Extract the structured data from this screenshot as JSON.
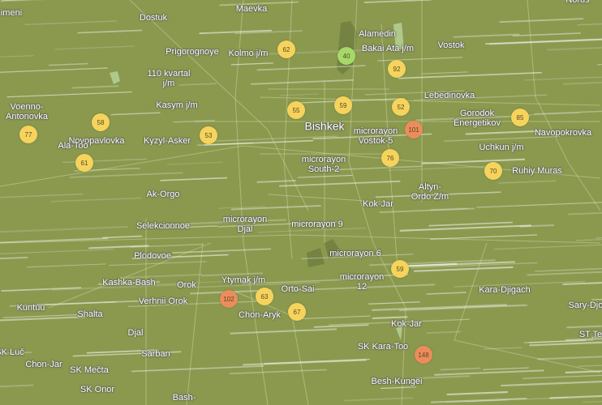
{
  "map": {
    "colors": {
      "background": "#8b994f",
      "good": "#a6d86a",
      "moderate": "#f6d35c",
      "unhealthy_sensitive": "#ec8c5c"
    },
    "city_label": "Bishkek",
    "labels": [
      "imeni",
      "Dostuk",
      "Maevka",
      "Prigorognoye",
      "Kolmo j/m",
      "110 kvartal\nj/m",
      "Kasym j/m",
      "Voenno-\nAntonovka",
      "Novopavlovka",
      "Kyzyl-Asker",
      "Ala-Too",
      "Ak-Orgo",
      "Alamedin",
      "Vostok",
      "Bakai Ata j/m",
      "Lebedinovka",
      "Gorodok\nÉnergetikov",
      "microrayon\nVostok-5",
      "Navopokrovka",
      "Uchkun j/m",
      "microrayon\nSouth-2",
      "Ruhiy Muras",
      "Altyn-\nOrdo Z/m",
      "Kok-Jar",
      "Selekcionnoe",
      "microrayon\nDjal",
      "microrayon 9",
      "Plodovoe",
      "microrayon 6",
      "microrayon\n12",
      "Kashka-Bash",
      "Orok",
      "Ytymak j/m",
      "Verhnii Orok",
      "Chon-Aryk",
      "Orto-Sai",
      "Kuntuu",
      "Shalta",
      "Kara-Djigach",
      "Sary-Djon",
      "Djal",
      "Kok-Jar",
      "ST Te",
      "SK Luč",
      "SK Kara-Too",
      "Sarban",
      "Chon-Jar",
      "SK Mečta",
      "Besh-Kungei",
      "SK Onor",
      "Bash-",
      "Norus"
    ],
    "markers": [
      {
        "aqi": "62",
        "level": "moderate"
      },
      {
        "aqi": "40",
        "level": "good"
      },
      {
        "aqi": "92",
        "level": "moderate"
      },
      {
        "aqi": "58",
        "level": "moderate"
      },
      {
        "aqi": "77",
        "level": "moderate"
      },
      {
        "aqi": "55",
        "level": "moderate"
      },
      {
        "aqi": "59",
        "level": "moderate"
      },
      {
        "aqi": "52",
        "level": "moderate"
      },
      {
        "aqi": "101",
        "level": "unhealthy_sensitive"
      },
      {
        "aqi": "85",
        "level": "moderate"
      },
      {
        "aqi": "53",
        "level": "moderate"
      },
      {
        "aqi": "61",
        "level": "moderate"
      },
      {
        "aqi": "76",
        "level": "moderate"
      },
      {
        "aqi": "70",
        "level": "moderate"
      },
      {
        "aqi": "59",
        "level": "moderate"
      },
      {
        "aqi": "102",
        "level": "unhealthy_sensitive"
      },
      {
        "aqi": "63",
        "level": "moderate"
      },
      {
        "aqi": "67",
        "level": "moderate"
      },
      {
        "aqi": "148",
        "level": "unhealthy_sensitive"
      }
    ]
  }
}
